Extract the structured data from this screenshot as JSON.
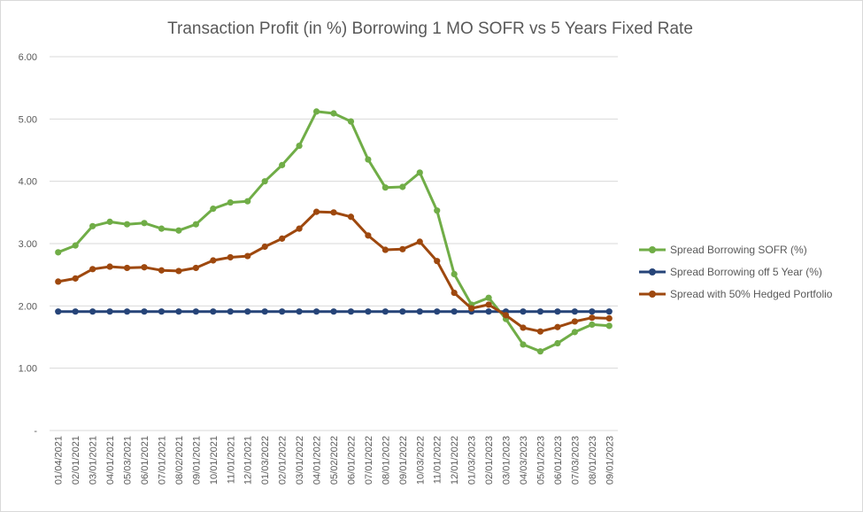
{
  "chart_data": {
    "type": "line",
    "title": "Transaction Profit (in %) Borrowing 1 MO SOFR vs 5 Years Fixed Rate",
    "xlabel": "",
    "ylabel": "",
    "ylim": [
      0,
      6
    ],
    "y_ticks": [
      "-",
      "1.00",
      "2.00",
      "3.00",
      "4.00",
      "5.00",
      "6.00"
    ],
    "grid": true,
    "legend_position": "right",
    "categories": [
      "01/04/2021",
      "02/01/2021",
      "03/01/2021",
      "04/01/2021",
      "05/03/2021",
      "06/01/2021",
      "07/01/2021",
      "08/02/2021",
      "09/01/2021",
      "10/01/2021",
      "11/01/2021",
      "12/01/2021",
      "01/03/2022",
      "02/01/2022",
      "03/01/2022",
      "04/01/2022",
      "05/02/2022",
      "06/01/2022",
      "07/01/2022",
      "08/01/2022",
      "09/01/2022",
      "10/03/2022",
      "11/01/2022",
      "12/01/2022",
      "01/03/2023",
      "02/01/2023",
      "03/01/2023",
      "04/03/2023",
      "05/01/2023",
      "06/01/2023",
      "07/03/2023",
      "08/01/2023",
      "09/01/2023"
    ],
    "series": [
      {
        "name": "Spread Borrowing SOFR (%)",
        "color": "#70ad47",
        "values": [
          2.86,
          2.97,
          3.28,
          3.35,
          3.31,
          3.33,
          3.24,
          3.21,
          3.31,
          3.56,
          3.66,
          3.68,
          4.0,
          4.26,
          4.57,
          5.12,
          5.09,
          4.96,
          4.35,
          3.9,
          3.91,
          4.14,
          3.53,
          2.51,
          2.02,
          2.13,
          1.79,
          1.38,
          1.27,
          1.4,
          1.58,
          1.7,
          1.68
        ]
      },
      {
        "name": "Spread Borrowing off 5 Year (%)",
        "color": "#264478",
        "values": [
          1.91,
          1.91,
          1.91,
          1.91,
          1.91,
          1.91,
          1.91,
          1.91,
          1.91,
          1.91,
          1.91,
          1.91,
          1.91,
          1.91,
          1.91,
          1.91,
          1.91,
          1.91,
          1.91,
          1.91,
          1.91,
          1.91,
          1.91,
          1.91,
          1.91,
          1.91,
          1.91,
          1.91,
          1.91,
          1.91,
          1.91,
          1.91,
          1.91
        ]
      },
      {
        "name": "Spread with 50% Hedged Portfolio",
        "color": "#9e480e",
        "values": [
          2.39,
          2.44,
          2.59,
          2.63,
          2.61,
          2.62,
          2.57,
          2.56,
          2.61,
          2.73,
          2.78,
          2.8,
          2.95,
          3.08,
          3.24,
          3.51,
          3.5,
          3.43,
          3.13,
          2.9,
          2.91,
          3.03,
          2.72,
          2.21,
          1.96,
          2.02,
          1.85,
          1.65,
          1.59,
          1.66,
          1.75,
          1.81,
          1.8
        ]
      }
    ]
  }
}
